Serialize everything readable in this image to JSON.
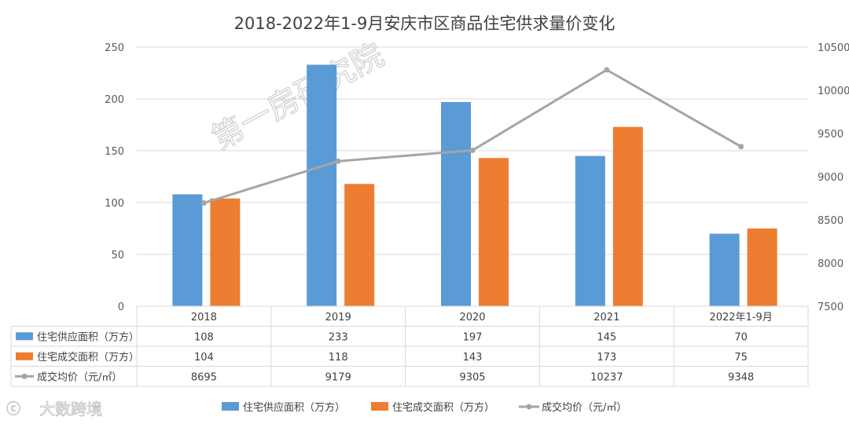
{
  "chart_data": {
    "type": "bar",
    "title": "2018-2022年1-9月安庆市区商品住宅供求量价变化",
    "categories": [
      "2018",
      "2019",
      "2020",
      "2021",
      "2022年1-9月"
    ],
    "series": [
      {
        "name": "住宅供应面积（万方）",
        "type": "bar",
        "axis": "left",
        "color": "#5b9bd5",
        "values": [
          108,
          233,
          197,
          145,
          70
        ]
      },
      {
        "name": "住宅成交面积（万方）",
        "type": "bar",
        "axis": "left",
        "color": "#ed7d31",
        "values": [
          104,
          118,
          143,
          173,
          75
        ]
      },
      {
        "name": "成交均价（元/㎡）",
        "type": "line",
        "axis": "right",
        "color": "#a5a5a5",
        "values": [
          8695,
          9179,
          9305,
          10237,
          9348
        ]
      }
    ],
    "series_labels": {
      "legend": [
        "住宅供应面积（万方）",
        "住宅成交面积（万方）",
        "成交均价（元/㎡）"
      ],
      "table": [
        "住宅供应面积（万方）",
        "住宅成交面积（万方）",
        "成交均价（元/㎡）"
      ]
    },
    "y_left": {
      "min": 0,
      "max": 250,
      "ticks": [
        0,
        50,
        100,
        150,
        200,
        250
      ]
    },
    "y_right": {
      "min": 7500,
      "max": 10500,
      "ticks": [
        7500,
        8000,
        8500,
        9000,
        9500,
        10000,
        10500
      ]
    },
    "grid": "horizontal",
    "legend_position": "bottom",
    "data_table": true
  },
  "watermarks": {
    "center": "第一房研究院",
    "corner": "大数跨境"
  }
}
